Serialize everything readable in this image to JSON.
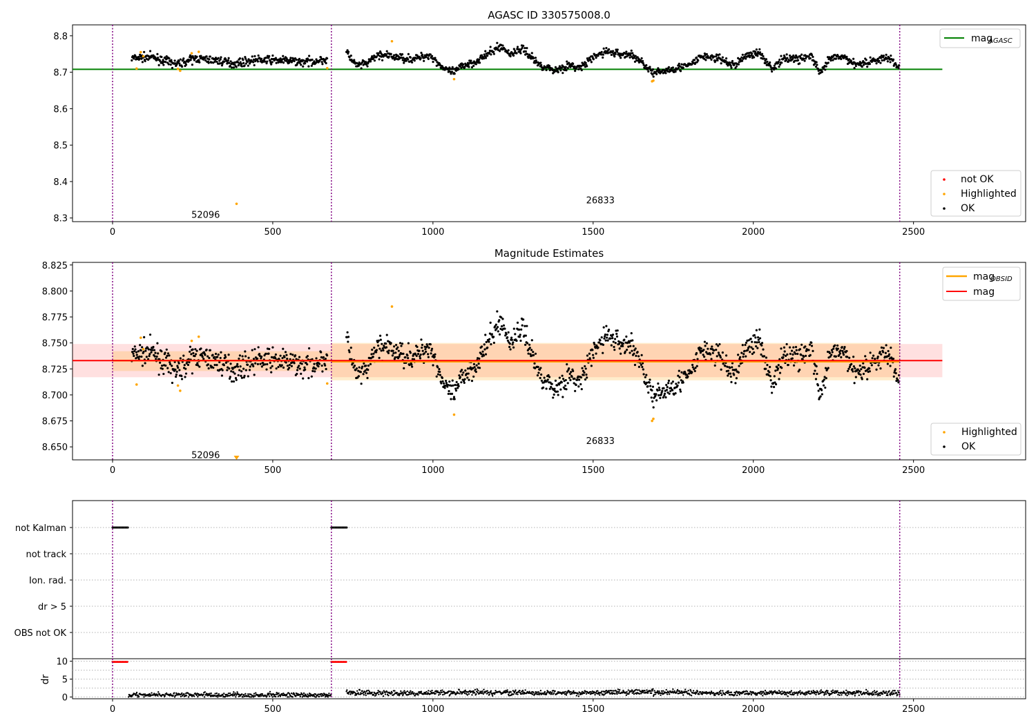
{
  "chart_data": [
    {
      "type": "scatter",
      "title": "AGASC ID 330575008.0",
      "xlim": [
        -125,
        2850
      ],
      "ylim": [
        8.29,
        8.83
      ],
      "xticks": [
        0,
        500,
        1000,
        1500,
        2000,
        2500
      ],
      "yticks": [
        8.3,
        8.4,
        8.5,
        8.6,
        8.7,
        8.8
      ],
      "ytick_labels": [
        "8.3",
        "8.4",
        "8.5",
        "8.6",
        "8.7",
        "8.8"
      ],
      "mag_agasc": 8.708,
      "obsid_boundaries": [
        0,
        683,
        2457
      ],
      "obsid_labels": [
        {
          "text": "52096",
          "x": 338,
          "y": 8.31
        },
        {
          "text": "26833",
          "x": 1570,
          "y": 8.35
        }
      ],
      "segments": [
        {
          "x": [
            60,
            120,
            200,
            260,
            330,
            380,
            450,
            520,
            600,
            670
          ],
          "y": [
            8.738,
            8.742,
            8.722,
            8.738,
            8.732,
            8.724,
            8.734,
            8.733,
            8.728,
            8.735
          ]
        },
        {
          "x": [
            730,
            760,
            790,
            830,
            880,
            940,
            990,
            1040,
            1070,
            1090,
            1130,
            1170,
            1210,
            1240,
            1280,
            1330,
            1380,
            1420,
            1460,
            1500,
            1540,
            1580,
            1620,
            1660,
            1690,
            1720,
            1760,
            1800,
            1840,
            1890,
            1940,
            1980,
            2020,
            2060,
            2100,
            2140,
            2180,
            2210,
            2240,
            2280,
            2320,
            2360,
            2400,
            2430,
            2455
          ],
          "y": [
            8.755,
            8.718,
            8.722,
            8.748,
            8.742,
            8.736,
            8.748,
            8.705,
            8.7,
            8.718,
            8.728,
            8.748,
            8.772,
            8.75,
            8.765,
            8.722,
            8.705,
            8.718,
            8.712,
            8.74,
            8.758,
            8.75,
            8.748,
            8.722,
            8.695,
            8.704,
            8.712,
            8.718,
            8.744,
            8.738,
            8.718,
            8.748,
            8.752,
            8.71,
            8.74,
            8.736,
            8.745,
            8.695,
            8.738,
            8.742,
            8.722,
            8.728,
            8.738,
            8.736,
            8.712
          ]
        }
      ],
      "highlighted": {
        "x": [
          75,
          88,
          96,
          204,
          211,
          247,
          269,
          387,
          670,
          872,
          1066,
          1684,
          1688
        ],
        "y": [
          8.71,
          8.755,
          8.744,
          8.709,
          8.704,
          8.752,
          8.756,
          8.339,
          8.711,
          8.785,
          8.681,
          8.675,
          8.677
        ]
      },
      "legends": [
        {
          "position": "upper-right",
          "entries": [
            {
              "label": "mag",
              "sub": "AGASC",
              "kind": "line",
              "color": "#008000"
            }
          ]
        },
        {
          "position": "lower-right",
          "entries": [
            {
              "label": "not OK",
              "kind": "marker",
              "color": "#ff0000"
            },
            {
              "label": "Highlighted",
              "kind": "marker",
              "color": "#ffa500"
            },
            {
              "label": "OK",
              "kind": "marker",
              "color": "#000000"
            }
          ]
        }
      ]
    },
    {
      "type": "scatter",
      "title": "Magnitude Estimates",
      "xlim": [
        -125,
        2850
      ],
      "ylim": [
        8.6375,
        8.8275
      ],
      "xticks": [
        0,
        500,
        1000,
        1500,
        2000,
        2500
      ],
      "yticks": [
        8.65,
        8.675,
        8.7,
        8.725,
        8.75,
        8.775,
        8.8,
        8.825
      ],
      "ytick_labels": [
        "8.650",
        "8.675",
        "8.700",
        "8.725",
        "8.750",
        "8.775",
        "8.800",
        "8.825"
      ],
      "mag": 8.733,
      "mag_band": [
        8.717,
        8.749
      ],
      "obsid_mags": [
        {
          "x": [
            0,
            683
          ],
          "mag": 8.733,
          "band": [
            8.723,
            8.742
          ]
        },
        {
          "x": [
            683,
            2457
          ],
          "mag": 8.732,
          "band": [
            8.714,
            8.75
          ]
        }
      ],
      "obsid_boundaries": [
        0,
        683,
        2457
      ],
      "obsid_labels": [
        {
          "text": "52096",
          "x": 338,
          "y": 8.6425
        },
        {
          "text": "26833",
          "x": 1570,
          "y": 8.656
        }
      ],
      "limit_marker": {
        "x": 387,
        "y": 8.6395
      },
      "legends": [
        {
          "position": "upper-right",
          "entries": [
            {
              "label": "mag",
              "sub": "OBSID",
              "kind": "line",
              "color": "#ffa500"
            },
            {
              "label": "mag",
              "kind": "line",
              "color": "#ff0000"
            }
          ]
        },
        {
          "position": "lower-right",
          "entries": [
            {
              "label": "Highlighted",
              "kind": "marker",
              "color": "#ffa500"
            },
            {
              "label": "OK",
              "kind": "marker",
              "color": "#000000"
            }
          ]
        }
      ]
    },
    {
      "type": "scatter",
      "title": "",
      "xlim": [
        -125,
        2850
      ],
      "categories": [
        "not Kalman",
        "not track",
        "Ion. rad.",
        "dr > 5",
        "OBS not OK"
      ],
      "flag_not_kalman": [
        {
          "x": [
            0,
            48
          ]
        },
        {
          "x": [
            683,
            731
          ]
        }
      ],
      "obsid_boundaries": [
        0,
        683,
        2457
      ]
    },
    {
      "type": "scatter",
      "title": "",
      "ylabel": "dr",
      "xlim": [
        -125,
        2850
      ],
      "ylim": [
        -0.5,
        10.7
      ],
      "xticks": [
        0,
        500,
        1000,
        1500,
        2000,
        2500
      ],
      "yticks": [
        0,
        5,
        10
      ],
      "ytick_labels": [
        "0",
        "5",
        "10"
      ],
      "dr_segments": [
        {
          "x": [
            50,
            200,
            350,
            500,
            683
          ],
          "y": [
            0.5,
            0.6,
            0.5,
            0.6,
            0.5
          ]
        },
        {
          "x": [
            730,
            900,
            1100,
            1300,
            1500,
            1700,
            1900,
            2100,
            2300,
            2457
          ],
          "y": [
            1.2,
            1.0,
            1.3,
            1.2,
            1.1,
            1.4,
            1.0,
            1.2,
            1.1,
            1.0
          ]
        }
      ],
      "dr_red": [
        {
          "x": [
            0,
            48
          ],
          "y": 9.8
        },
        {
          "x": [
            683,
            731
          ],
          "y": 9.8
        }
      ],
      "obsid_boundaries": [
        0,
        683,
        2457
      ]
    }
  ]
}
